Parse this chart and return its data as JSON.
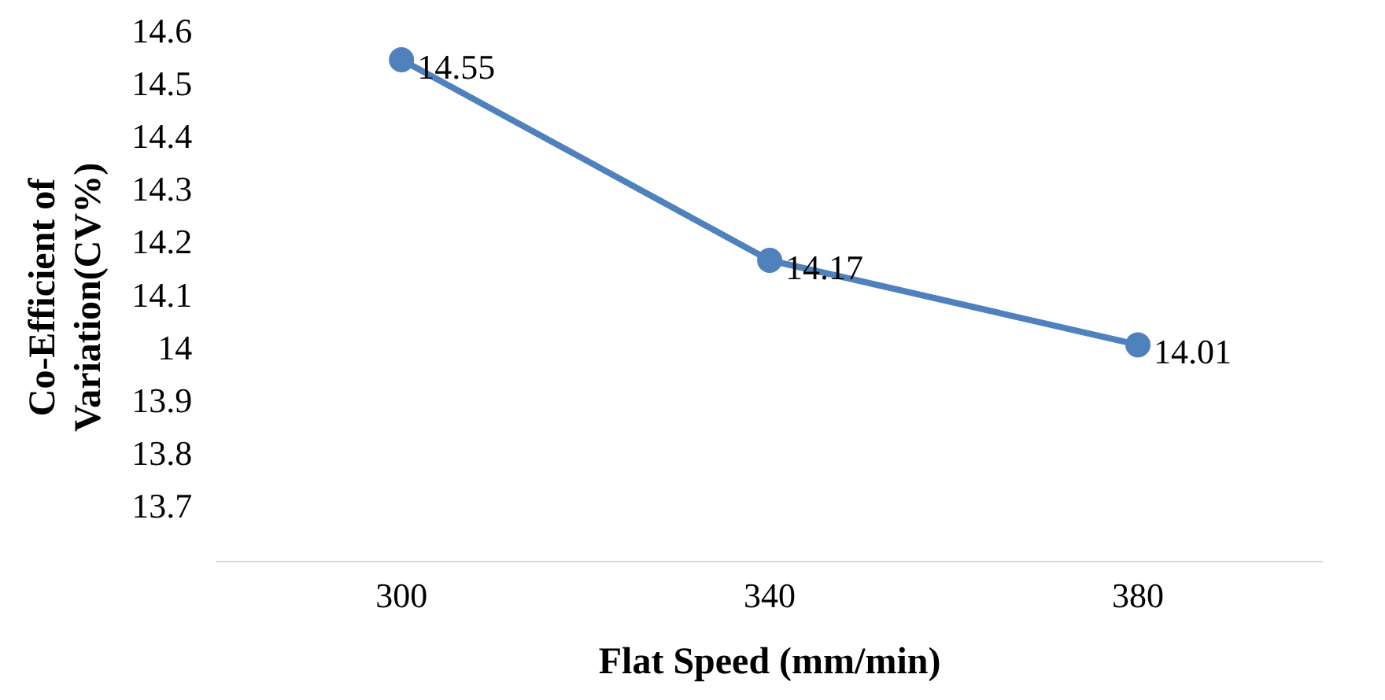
{
  "chart_data": {
    "type": "line",
    "xlabel": "Flat Speed (mm/min)",
    "ylabel": "Co-Efficient of Variation(CV%)",
    "categories": [
      "300",
      "340",
      "380"
    ],
    "series": [
      {
        "color": "#4f81bd",
        "values": [
          14.55,
          14.17,
          14.01
        ]
      }
    ],
    "ylim": [
      13.6,
      14.6
    ],
    "yticks": [
      13.7,
      13.8,
      13.9,
      14,
      14.1,
      14.2,
      14.3,
      14.4,
      14.5,
      14.6
    ],
    "marker": "circle",
    "data_labels": true,
    "legend": false,
    "grid": false
  }
}
